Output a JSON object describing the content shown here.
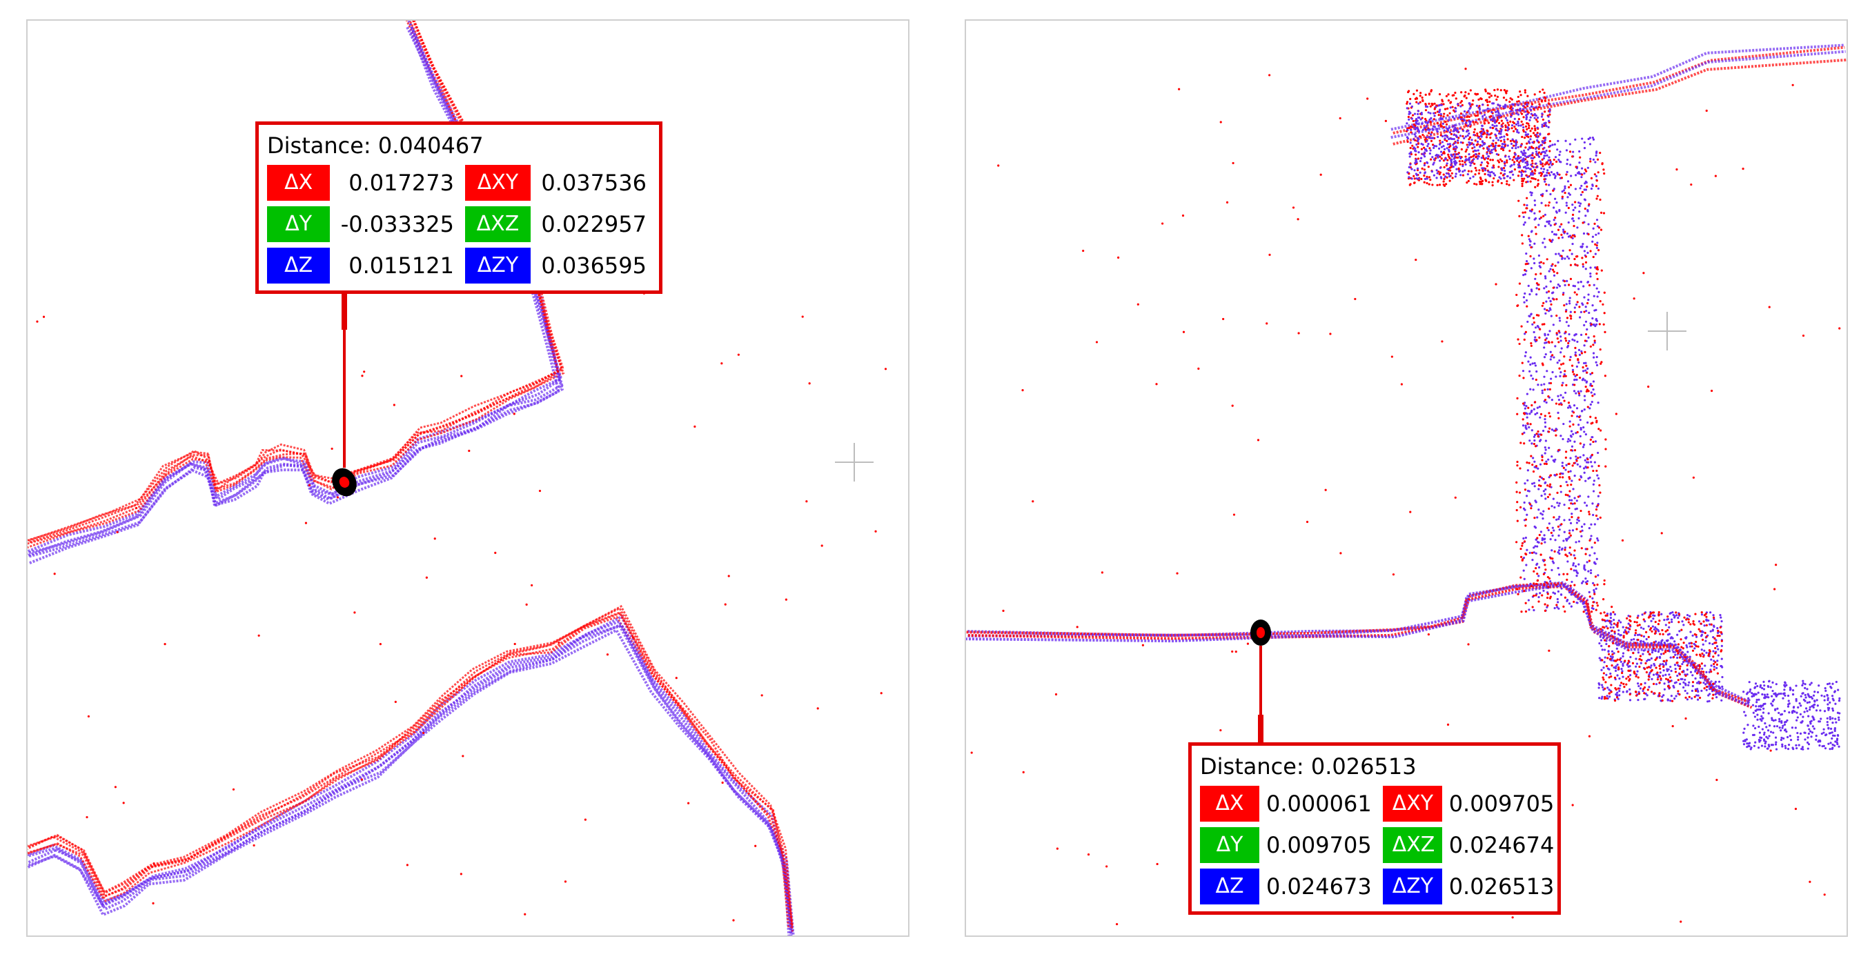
{
  "panels": [
    {
      "distance_label": "Distance: 0.040467",
      "rows": [
        {
          "tag1": "ΔX",
          "val1": "0.017273",
          "tag2": "ΔXY",
          "val2": "0.037536"
        },
        {
          "tag1": "ΔY",
          "val1": "-0.033325",
          "tag2": "ΔXZ",
          "val2": "0.022957"
        },
        {
          "tag1": "ΔZ",
          "val1": "0.015121",
          "tag2": "ΔZY",
          "val2": "0.036595"
        }
      ]
    },
    {
      "distance_label": "Distance: 0.026513",
      "rows": [
        {
          "tag1": "ΔX",
          "val1": "0.000061",
          "tag2": "ΔXY",
          "val2": "0.009705"
        },
        {
          "tag1": "ΔY",
          "val1": "0.009705",
          "tag2": "ΔXZ",
          "val2": "0.024674"
        },
        {
          "tag1": "ΔZ",
          "val1": "0.024673",
          "tag2": "ΔZY",
          "val2": "0.026513"
        }
      ]
    }
  ],
  "colors": {
    "cloud_a": "#ff0000",
    "cloud_b": "#6a2cf0",
    "box_border": "#e00000",
    "dx": "#ff0000",
    "dy": "#00c000",
    "dz": "#0000ff"
  },
  "icons": [
    "crosshair-icon",
    "point-marker-icon"
  ]
}
